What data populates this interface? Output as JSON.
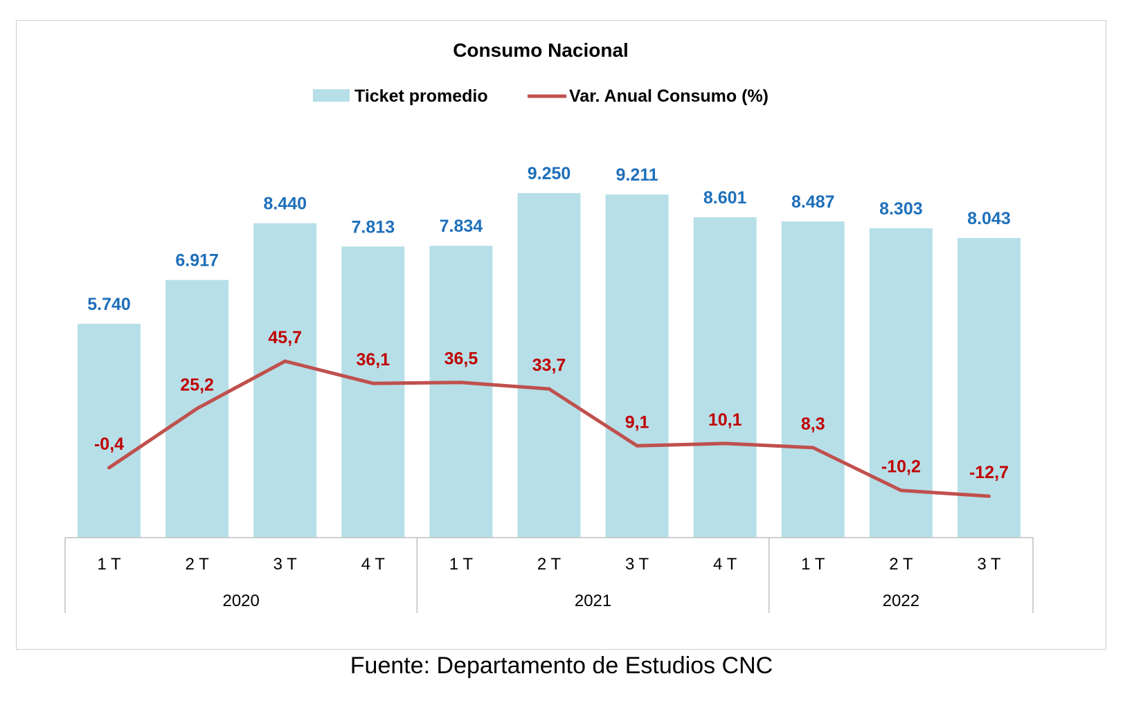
{
  "chart_data": {
    "type": "bar",
    "title": "Consumo Nacional",
    "legend": {
      "placement": "top",
      "entries": [
        "Ticket promedio",
        "Var. Anual Consumo (%)"
      ]
    },
    "categories": [
      "1 T",
      "2 T",
      "3 T",
      "4 T",
      "1 T",
      "2 T",
      "3 T",
      "4 T",
      "1 T",
      "2 T",
      "3 T"
    ],
    "category_groups": [
      {
        "label": "2020",
        "count": 4
      },
      {
        "label": "2021",
        "count": 4
      },
      {
        "label": "2022",
        "count": 3
      }
    ],
    "series": [
      {
        "name": "Ticket promedio",
        "type": "bar",
        "color": "#b7dfe8",
        "values": [
          5740,
          6917,
          8440,
          7813,
          7834,
          9250,
          9211,
          8601,
          8487,
          8303,
          8043
        ],
        "labels": [
          "5.740",
          "6.917",
          "8.440",
          "7.813",
          "7.834",
          "9.250",
          "9.211",
          "8.601",
          "8.487",
          "8.303",
          "8.043"
        ],
        "label_color": "#1e6fba"
      },
      {
        "name": "Var. Anual Consumo (%)",
        "type": "line",
        "color": "#c0504d",
        "values": [
          -0.4,
          25.2,
          45.7,
          36.1,
          36.5,
          33.7,
          9.1,
          10.1,
          8.3,
          -10.2,
          -12.7
        ],
        "labels": [
          "-0,4",
          "25,2",
          "45,7",
          "36,1",
          "36,5",
          "33,7",
          "9,1",
          "10,1",
          "8,3",
          "-10,2",
          "-12,7"
        ],
        "label_color": "#c00000"
      }
    ],
    "ylim_bar": [
      0,
      10000
    ],
    "ylim_line": [
      -75,
      130
    ],
    "grid": false,
    "xlabel": "",
    "ylabel": ""
  },
  "source": "Fuente: Departamento de Estudios CNC"
}
